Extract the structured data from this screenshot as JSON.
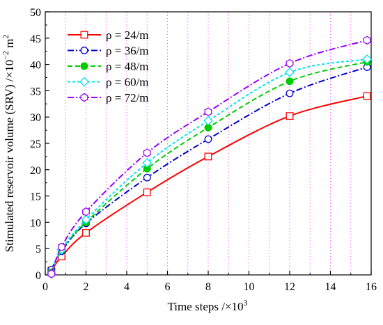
{
  "chart_data": {
    "type": "line",
    "title": "",
    "xlabel": "Time steps /×10",
    "xlabel_sup": "3",
    "ylabel": "Stimulated reservoir volume (SRV) /×10",
    "ylabel_sup1": "−2",
    "ylabel_mid": " m",
    "ylabel_sup2": "2",
    "xlim": [
      0,
      16
    ],
    "ylim": [
      0,
      50
    ],
    "xticks": [
      0,
      2,
      4,
      6,
      8,
      10,
      12,
      14,
      16
    ],
    "yticks": [
      0,
      5,
      10,
      15,
      20,
      25,
      30,
      35,
      40,
      45,
      50
    ],
    "grid": "vertical dotted magenta",
    "legend_position": "top-left",
    "series": [
      {
        "name": "ρ = 24/m",
        "color": "#ff0000",
        "dash": "solid",
        "marker": "open-square",
        "x": [
          0.3,
          0.8,
          2,
          5,
          8,
          12,
          15.8
        ],
        "y": [
          0.8,
          3.5,
          8,
          15.7,
          22.5,
          30.2,
          34
        ]
      },
      {
        "name": "ρ = 36/m",
        "color": "#0000cc",
        "dash": "dash-dot",
        "marker": "open-circle",
        "x": [
          0.3,
          0.8,
          2,
          5,
          8,
          12,
          15.8
        ],
        "y": [
          1,
          4.5,
          9.8,
          18.5,
          25.8,
          34.5,
          39.5
        ]
      },
      {
        "name": "ρ = 48/m",
        "color": "#00cc00",
        "dash": "dashed",
        "marker": "filled-circle",
        "x": [
          0.3,
          0.8,
          2,
          5,
          8,
          12,
          15.8
        ],
        "y": [
          0.5,
          4.7,
          10,
          20.2,
          28,
          36.8,
          40.5
        ]
      },
      {
        "name": "ρ = 60/m",
        "color": "#00e5ee",
        "dash": "short-dash",
        "marker": "open-diamond",
        "x": [
          0.3,
          0.8,
          2,
          5,
          8,
          12,
          15.8
        ],
        "y": [
          0.2,
          4.8,
          10.5,
          21.3,
          29.3,
          38.5,
          41
        ]
      },
      {
        "name": "ρ = 72/m",
        "color": "#9900ff",
        "dash": "dash-dot",
        "marker": "open-hexagon",
        "x": [
          0.3,
          0.8,
          2,
          5,
          8,
          12,
          15.8
        ],
        "y": [
          0.2,
          5.3,
          12,
          23.2,
          31,
          40.2,
          44.6
        ]
      }
    ]
  }
}
